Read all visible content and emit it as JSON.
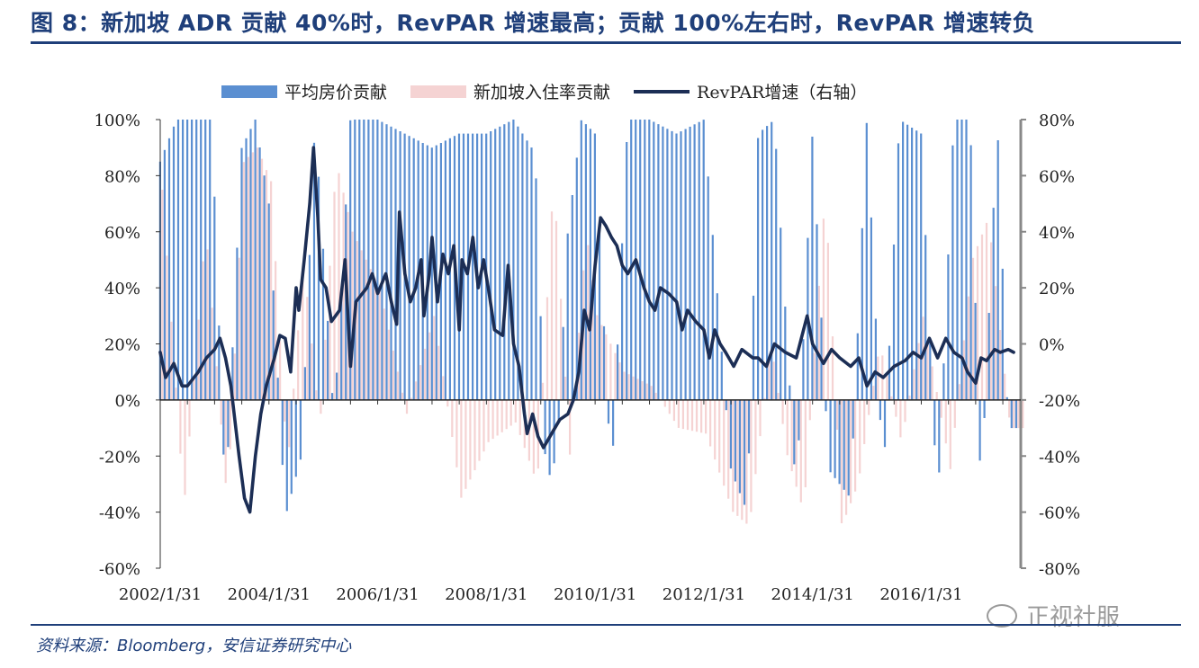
{
  "title": "图 8：新加坡 ADR 贡献 40%时，RevPAR 增速最高；贡献 100%左右时，RevPAR 增速转负",
  "source": "资料来源：Bloomberg，安信证券研究中心",
  "watermark": "正视社服",
  "chart_data": {
    "type": "bar",
    "x_range": [
      "2002/1/31",
      "2017/11/30"
    ],
    "x_tick_labels": [
      "2002/1/31",
      "2004/1/31",
      "2006/1/31",
      "2008/1/31",
      "2010/1/31",
      "2012/1/31",
      "2014/1/31",
      "2016/1/31"
    ],
    "y_left_ticks": [
      "100%",
      "80%",
      "60%",
      "40%",
      "20%",
      "0%",
      "-20%",
      "-40%",
      "-60%"
    ],
    "y_right_ticks": [
      "80%",
      "60%",
      "40%",
      "20%",
      "0%",
      "-20%",
      "-40%",
      "-60%",
      "-80%"
    ],
    "ylim_left": [
      -60,
      100
    ],
    "ylim_right": [
      -80,
      80
    ],
    "legend_position": "top",
    "colors": {
      "adr": "#5B8FD1",
      "occupancy": "#F5D3D3",
      "revpar": "#1C2E55",
      "axis": "#888888"
    },
    "series": [
      {
        "name": "平均房价贡献",
        "axis": "left",
        "kind": "bar",
        "anchors": [
          [
            2002.0,
            85
          ],
          [
            2002.3,
            100
          ],
          [
            2002.7,
            100
          ],
          [
            2002.95,
            100
          ],
          [
            2003.2,
            -38
          ],
          [
            2003.5,
            90
          ],
          [
            2003.75,
            100
          ],
          [
            2004.0,
            70
          ],
          [
            2004.3,
            -42
          ],
          [
            2004.6,
            -20
          ],
          [
            2004.85,
            100
          ],
          [
            2005.2,
            -8
          ],
          [
            2005.5,
            100
          ],
          [
            2006.0,
            100
          ],
          [
            2006.5,
            95
          ],
          [
            2007.0,
            90
          ],
          [
            2007.5,
            95
          ],
          [
            2008.0,
            95
          ],
          [
            2008.5,
            100
          ],
          [
            2008.9,
            88
          ],
          [
            2009.1,
            -30
          ],
          [
            2009.3,
            -20
          ],
          [
            2009.5,
            60
          ],
          [
            2009.75,
            100
          ],
          [
            2010.0,
            95
          ],
          [
            2010.3,
            -30
          ],
          [
            2010.6,
            100
          ],
          [
            2011.0,
            100
          ],
          [
            2011.5,
            95
          ],
          [
            2012.0,
            100
          ],
          [
            2012.5,
            -25
          ],
          [
            2012.8,
            -40
          ],
          [
            2013.0,
            95
          ],
          [
            2013.3,
            100
          ],
          [
            2013.7,
            -35
          ],
          [
            2014.0,
            95
          ],
          [
            2014.3,
            -25
          ],
          [
            2014.7,
            -35
          ],
          [
            2015.0,
            100
          ],
          [
            2015.3,
            -30
          ],
          [
            2015.6,
            100
          ],
          [
            2016.0,
            95
          ],
          [
            2016.3,
            -40
          ],
          [
            2016.6,
            100
          ],
          [
            2016.9,
            100
          ],
          [
            2017.1,
            -35
          ],
          [
            2017.4,
            100
          ],
          [
            2017.6,
            -10
          ]
        ]
      },
      {
        "name": "新加坡入住率贡献",
        "axis": "left",
        "kind": "bar",
        "anchors": [
          [
            2002.0,
            75
          ],
          [
            2002.4,
            -38
          ],
          [
            2002.8,
            62
          ],
          [
            2003.2,
            -38
          ],
          [
            2003.5,
            85
          ],
          [
            2003.75,
            90
          ],
          [
            2004.0,
            78
          ],
          [
            2004.3,
            -25
          ],
          [
            2004.6,
            50
          ],
          [
            2004.9,
            -10
          ],
          [
            2005.2,
            85
          ],
          [
            2005.5,
            60
          ],
          [
            2006.0,
            40
          ],
          [
            2006.5,
            -5
          ],
          [
            2007.0,
            30
          ],
          [
            2007.5,
            -35
          ],
          [
            2008.0,
            -15
          ],
          [
            2008.5,
            -8
          ],
          [
            2008.9,
            -30
          ],
          [
            2009.2,
            80
          ],
          [
            2009.5,
            -20
          ],
          [
            2009.8,
            60
          ],
          [
            2010.0,
            30
          ],
          [
            2010.5,
            10
          ],
          [
            2011.0,
            5
          ],
          [
            2011.5,
            -10
          ],
          [
            2012.0,
            -12
          ],
          [
            2012.5,
            -40
          ],
          [
            2012.8,
            -45
          ],
          [
            2013.2,
            20
          ],
          [
            2013.5,
            -20
          ],
          [
            2013.8,
            -40
          ],
          [
            2014.2,
            75
          ],
          [
            2014.5,
            -45
          ],
          [
            2014.8,
            -30
          ],
          [
            2015.2,
            20
          ],
          [
            2015.6,
            -15
          ],
          [
            2016.0,
            30
          ],
          [
            2016.5,
            -25
          ],
          [
            2016.9,
            50
          ],
          [
            2017.2,
            65
          ],
          [
            2017.6,
            -10
          ]
        ]
      },
      {
        "name": "RevPAR增速（右轴）",
        "axis": "right",
        "kind": "line",
        "anchors": [
          [
            2002.0,
            -3
          ],
          [
            2002.1,
            -12
          ],
          [
            2002.25,
            -7
          ],
          [
            2002.4,
            -15
          ],
          [
            2002.5,
            -15
          ],
          [
            2002.7,
            -10
          ],
          [
            2002.85,
            -5
          ],
          [
            2003.0,
            -2
          ],
          [
            2003.1,
            2
          ],
          [
            2003.2,
            -5
          ],
          [
            2003.3,
            -15
          ],
          [
            2003.45,
            -40
          ],
          [
            2003.55,
            -55
          ],
          [
            2003.65,
            -60
          ],
          [
            2003.75,
            -40
          ],
          [
            2003.85,
            -25
          ],
          [
            2003.95,
            -15
          ],
          [
            2004.1,
            -5
          ],
          [
            2004.2,
            3
          ],
          [
            2004.3,
            2
          ],
          [
            2004.4,
            -10
          ],
          [
            2004.5,
            20
          ],
          [
            2004.55,
            12
          ],
          [
            2004.65,
            30
          ],
          [
            2004.75,
            50
          ],
          [
            2004.82,
            70
          ],
          [
            2004.9,
            45
          ],
          [
            2004.95,
            23
          ],
          [
            2005.05,
            20
          ],
          [
            2005.15,
            8
          ],
          [
            2005.3,
            12
          ],
          [
            2005.4,
            30
          ],
          [
            2005.5,
            -8
          ],
          [
            2005.6,
            15
          ],
          [
            2005.8,
            20
          ],
          [
            2005.9,
            25
          ],
          [
            2006.0,
            18
          ],
          [
            2006.15,
            25
          ],
          [
            2006.25,
            15
          ],
          [
            2006.35,
            7
          ],
          [
            2006.4,
            47
          ],
          [
            2006.5,
            25
          ],
          [
            2006.6,
            15
          ],
          [
            2006.7,
            20
          ],
          [
            2006.8,
            30
          ],
          [
            2006.85,
            10
          ],
          [
            2006.95,
            25
          ],
          [
            2007.0,
            38
          ],
          [
            2007.1,
            15
          ],
          [
            2007.2,
            32
          ],
          [
            2007.3,
            25
          ],
          [
            2007.4,
            35
          ],
          [
            2007.5,
            5
          ],
          [
            2007.55,
            30
          ],
          [
            2007.65,
            25
          ],
          [
            2007.75,
            38
          ],
          [
            2007.85,
            20
          ],
          [
            2007.95,
            30
          ],
          [
            2008.05,
            18
          ],
          [
            2008.15,
            5
          ],
          [
            2008.3,
            3
          ],
          [
            2008.4,
            28
          ],
          [
            2008.5,
            0
          ],
          [
            2008.6,
            -8
          ],
          [
            2008.7,
            -25
          ],
          [
            2008.75,
            -32
          ],
          [
            2008.85,
            -25
          ],
          [
            2008.95,
            -33
          ],
          [
            2009.05,
            -37
          ],
          [
            2009.2,
            -32
          ],
          [
            2009.35,
            -27
          ],
          [
            2009.5,
            -25
          ],
          [
            2009.6,
            -20
          ],
          [
            2009.7,
            -10
          ],
          [
            2009.8,
            12
          ],
          [
            2009.9,
            5
          ],
          [
            2010.0,
            28
          ],
          [
            2010.1,
            45
          ],
          [
            2010.2,
            42
          ],
          [
            2010.3,
            38
          ],
          [
            2010.4,
            35
          ],
          [
            2010.5,
            28
          ],
          [
            2010.6,
            25
          ],
          [
            2010.75,
            30
          ],
          [
            2010.9,
            20
          ],
          [
            2011.0,
            15
          ],
          [
            2011.1,
            12
          ],
          [
            2011.2,
            20
          ],
          [
            2011.35,
            18
          ],
          [
            2011.5,
            15
          ],
          [
            2011.6,
            5
          ],
          [
            2011.7,
            12
          ],
          [
            2011.85,
            8
          ],
          [
            2012.0,
            5
          ],
          [
            2012.1,
            -5
          ],
          [
            2012.2,
            5
          ],
          [
            2012.3,
            0
          ],
          [
            2012.4,
            -3
          ],
          [
            2012.55,
            -8
          ],
          [
            2012.7,
            -2
          ],
          [
            2012.9,
            -5
          ],
          [
            2013.0,
            -5
          ],
          [
            2013.15,
            -8
          ],
          [
            2013.3,
            0
          ],
          [
            2013.5,
            -3
          ],
          [
            2013.7,
            -5
          ],
          [
            2013.9,
            10
          ],
          [
            2014.0,
            0
          ],
          [
            2014.2,
            -7
          ],
          [
            2014.35,
            -2
          ],
          [
            2014.5,
            -5
          ],
          [
            2014.7,
            -8
          ],
          [
            2014.85,
            -5
          ],
          [
            2015.0,
            -15
          ],
          [
            2015.15,
            -10
          ],
          [
            2015.3,
            -12
          ],
          [
            2015.5,
            -8
          ],
          [
            2015.7,
            -6
          ],
          [
            2015.85,
            -3
          ],
          [
            2016.0,
            -5
          ],
          [
            2016.15,
            2
          ],
          [
            2016.3,
            -5
          ],
          [
            2016.45,
            2
          ],
          [
            2016.6,
            -3
          ],
          [
            2016.75,
            -5
          ],
          [
            2016.85,
            -10
          ],
          [
            2017.0,
            -14
          ],
          [
            2017.1,
            -5
          ],
          [
            2017.2,
            -6
          ],
          [
            2017.35,
            -2
          ],
          [
            2017.45,
            -3
          ],
          [
            2017.6,
            -2
          ],
          [
            2017.7,
            -3
          ]
        ]
      }
    ]
  }
}
